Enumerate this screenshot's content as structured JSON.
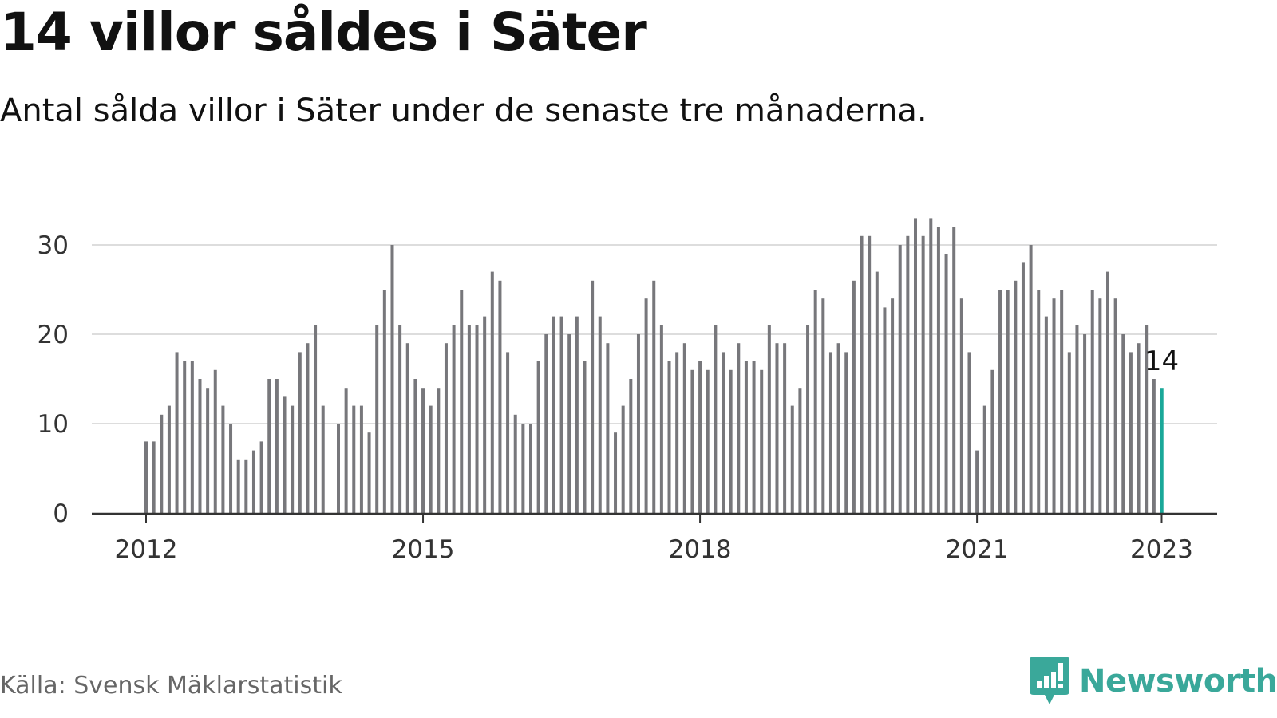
{
  "title": "14 villor såldes i Säter",
  "subtitle": "Antal sålda villor i Säter under de senaste tre månaderna.",
  "source": "Källa: Svensk Mäklarstatistik",
  "brand": {
    "name": "Newsworthy",
    "color": "#3aa89a",
    "logo_icon": "newsworthy-chart-bubble-icon"
  },
  "colors": {
    "bar": "#77777b",
    "highlight": "#1aa899",
    "grid": "#dddddd",
    "axis": "#333333"
  },
  "chart_data": {
    "type": "bar",
    "x_start": "2012-01",
    "frequency": "monthly",
    "values": [
      8,
      8,
      11,
      12,
      18,
      17,
      17,
      15,
      14,
      16,
      12,
      10,
      6,
      6,
      7,
      8,
      15,
      15,
      13,
      12,
      18,
      19,
      21,
      12,
      null,
      10,
      14,
      12,
      12,
      9,
      21,
      25,
      30,
      21,
      19,
      15,
      14,
      12,
      14,
      19,
      21,
      25,
      21,
      21,
      22,
      27,
      26,
      18,
      11,
      10,
      10,
      17,
      20,
      22,
      22,
      20,
      22,
      17,
      26,
      22,
      19,
      9,
      12,
      15,
      20,
      24,
      26,
      21,
      17,
      18,
      19,
      16,
      17,
      16,
      21,
      18,
      16,
      19,
      17,
      17,
      16,
      21,
      19,
      19,
      12,
      14,
      21,
      25,
      24,
      18,
      19,
      18,
      26,
      31,
      31,
      27,
      23,
      24,
      30,
      31,
      33,
      31,
      33,
      32,
      29,
      32,
      24,
      18,
      7,
      12,
      16,
      25,
      25,
      26,
      28,
      30,
      25,
      22,
      24,
      25,
      18,
      21,
      20,
      25,
      24,
      27,
      24,
      20,
      18,
      19,
      21,
      15,
      14
    ],
    "x_ticks": [
      "2012",
      "2015",
      "2018",
      "2021",
      "2023"
    ],
    "y_ticks": [
      "0",
      "10",
      "20",
      "30"
    ],
    "ylim": [
      0,
      35
    ],
    "highlight": {
      "date": "2023-01",
      "value": 14,
      "label": "14"
    },
    "grid": true
  }
}
